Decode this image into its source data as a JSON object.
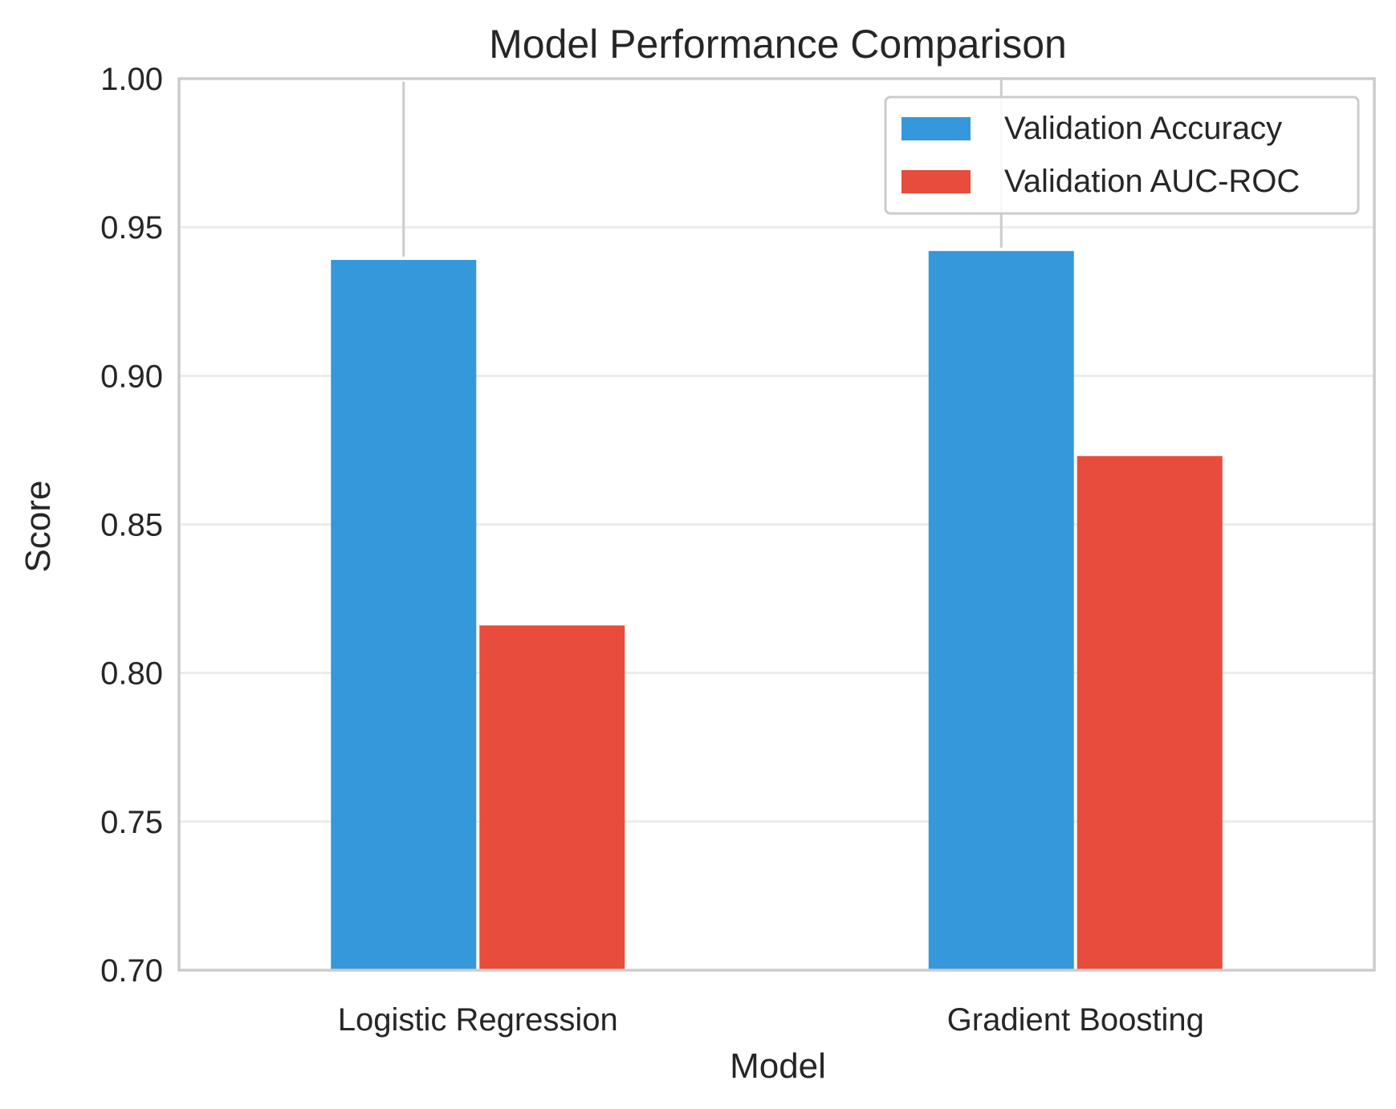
{
  "chart_data": {
    "type": "bar",
    "title": "Model Performance Comparison",
    "xlabel": "Model",
    "ylabel": "Score",
    "categories": [
      "Logistic Regression",
      "Gradient Boosting"
    ],
    "series": [
      {
        "name": "Validation Accuracy",
        "color": "#3498db",
        "values": [
          0.939,
          0.942
        ],
        "error": [
          0.06,
          0.06
        ]
      },
      {
        "name": "Validation AUC-ROC",
        "color": "#e74c3c",
        "values": [
          0.816,
          0.873
        ],
        "error": [
          0,
          0
        ]
      }
    ],
    "ylim": [
      0.7,
      1.0
    ],
    "yticks": [
      "0.70",
      "0.75",
      "0.80",
      "0.85",
      "0.90",
      "0.95",
      "1.00"
    ],
    "ytick_values": [
      0.7,
      0.75,
      0.8,
      0.85,
      0.9,
      0.95,
      1.0
    ],
    "grid": true,
    "legend": {
      "position": "top-right"
    },
    "colors": {
      "grid": "#ebebeb",
      "spine": "#cccccc",
      "errorbar": "#cccccc",
      "text": "#262626"
    }
  }
}
